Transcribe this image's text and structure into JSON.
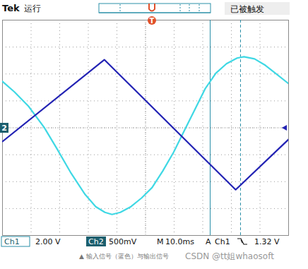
{
  "chart_data": {
    "type": "line",
    "xlim": [
      -5,
      5
    ],
    "ylim": [
      -4,
      4
    ],
    "xticks": [
      -5,
      -4,
      -3,
      -2,
      -1,
      0,
      1,
      2,
      3,
      4,
      5
    ],
    "yticks": [
      -4,
      -3,
      -2,
      -1,
      0,
      1,
      2,
      3,
      4
    ],
    "grid": true,
    "tick_labels": false,
    "series": [
      {
        "name": "Ch1",
        "color": "#3fd8e4",
        "scale_label": "2.00 V",
        "x": [
          -5.0,
          -4.58,
          -4.09,
          -3.54,
          -3.1,
          -2.6,
          -2.11,
          -1.74,
          -1.42,
          -1.17,
          -0.88,
          -0.51,
          -0.14,
          0.23,
          0.6,
          0.98,
          1.35,
          1.72,
          2.09,
          2.46,
          2.83,
          3.2,
          3.44,
          3.81,
          4.19,
          4.56,
          5.0
        ],
        "values": [
          1.72,
          1.33,
          0.8,
          0.01,
          -0.77,
          -1.69,
          -2.48,
          -2.93,
          -3.14,
          -3.22,
          -3.14,
          -2.93,
          -2.61,
          -2.22,
          -1.61,
          -0.91,
          -0.12,
          0.67,
          1.46,
          2.03,
          2.38,
          2.59,
          2.64,
          2.56,
          2.32,
          2.01,
          1.64
        ]
      },
      {
        "name": "Ch2",
        "color": "#2323b4",
        "scale_label": "500mV",
        "x": [
          -5.0,
          -1.44,
          3.15,
          5.0
        ],
        "values": [
          -0.51,
          2.53,
          -2.3,
          -0.43
        ]
      }
    ],
    "cursors_x": [
      2.26,
      3.32
    ],
    "header": {
      "brand": "Tek",
      "state": "运行",
      "trigger_status": "已被触发",
      "trigger_marker": "T"
    },
    "channel_marker": "2",
    "timebase": {
      "prefix": "M",
      "value": "10.0ms"
    },
    "trigger": {
      "prefix": "A",
      "source": "Ch1",
      "level": "1.32 V"
    },
    "caption": "▲ 输入信号（蓝色）与输出信号",
    "watermark": "CSDN @tt姐whaosoft"
  }
}
